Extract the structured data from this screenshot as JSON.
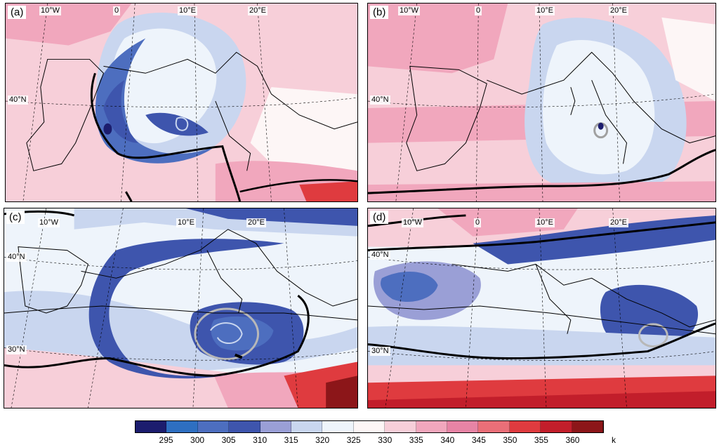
{
  "figure": {
    "colorbar": {
      "colors": [
        "#1c1d6e",
        "#2e6fc1",
        "#4d6ebf",
        "#3e55ad",
        "#9a9fd6",
        "#c9d6ef",
        "#eef4fb",
        "#fdf6f6",
        "#f7cfd9",
        "#f1a7bd",
        "#e784a5",
        "#ea6f78",
        "#df3b3f",
        "#c21e2b",
        "#8c1619"
      ],
      "ticks": [
        "295",
        "300",
        "305",
        "310",
        "315",
        "320",
        "325",
        "330",
        "335",
        "340",
        "345",
        "350",
        "355",
        "360"
      ],
      "unit": "k"
    },
    "panels": [
      {
        "tag": "(a)",
        "lon_labels": [
          "10°W",
          "0",
          "10°E",
          "20°E"
        ],
        "lat_labels": [
          "40°N"
        ]
      },
      {
        "tag": "(b)",
        "lon_labels": [
          "10°W",
          "0",
          "10°E",
          "20°E"
        ],
        "lat_labels": [
          "40°N"
        ]
      },
      {
        "tag": "(c)",
        "lon_labels": [
          "10°W",
          "10°E",
          "20°E"
        ],
        "lat_labels": [
          "40°N",
          "30°N"
        ]
      },
      {
        "tag": "(d)",
        "lon_labels": [
          "10°W",
          "0",
          "10°E",
          "20°E"
        ],
        "lat_labels": [
          "40°N",
          "30°N"
        ]
      }
    ]
  }
}
